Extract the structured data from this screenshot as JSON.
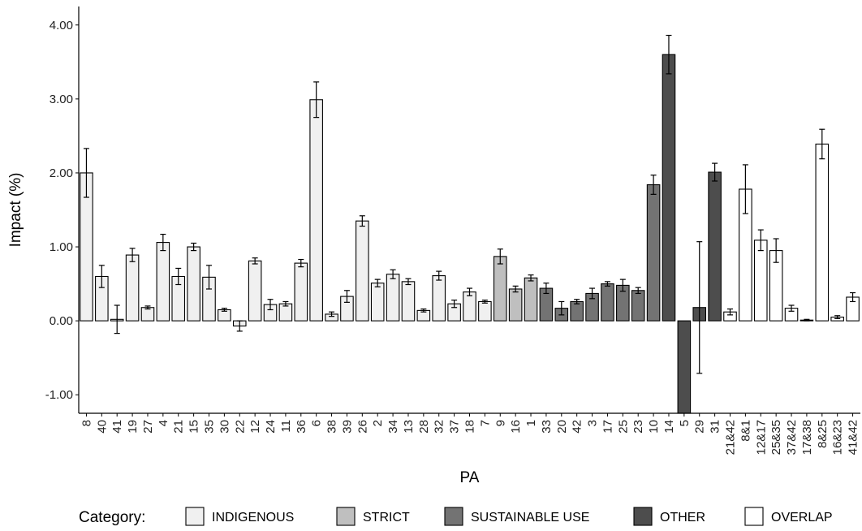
{
  "chart_data": {
    "type": "bar",
    "xlabel": "PA",
    "ylabel": "Impact (%)",
    "ylim": [
      -1.25,
      4.25
    ],
    "yticks": [
      "4.00",
      "3.00",
      "2.00",
      "1.00",
      "0.00",
      "-1.00"
    ],
    "ytick_values": [
      4,
      3,
      2,
      1,
      0,
      -1
    ],
    "grid": false,
    "legend": {
      "title": "Category:",
      "placement": "bottom",
      "items": [
        {
          "key": "INDIGENOUS",
          "label": "INDIGENOUS",
          "color": "#f0f0f0"
        },
        {
          "key": "STRICT",
          "label": "STRICT",
          "color": "#bfbfbf"
        },
        {
          "key": "SUSTAINABLE_USE",
          "label": "SUSTAINABLE USE",
          "color": "#737373"
        },
        {
          "key": "OTHER",
          "label": "OTHER",
          "color": "#4d4d4d"
        },
        {
          "key": "OVERLAP",
          "label": "OVERLAP",
          "color": "#ffffff"
        }
      ]
    },
    "bars": [
      {
        "pa": "8",
        "value": 2.0,
        "error": 0.33,
        "category": "INDIGENOUS"
      },
      {
        "pa": "40",
        "value": 0.6,
        "error": 0.15,
        "category": "INDIGENOUS"
      },
      {
        "pa": "41",
        "value": 0.02,
        "error": 0.19,
        "category": "INDIGENOUS"
      },
      {
        "pa": "19",
        "value": 0.89,
        "error": 0.09,
        "category": "INDIGENOUS"
      },
      {
        "pa": "27",
        "value": 0.18,
        "error": 0.02,
        "category": "INDIGENOUS"
      },
      {
        "pa": "4",
        "value": 1.06,
        "error": 0.11,
        "category": "INDIGENOUS"
      },
      {
        "pa": "21",
        "value": 0.6,
        "error": 0.11,
        "category": "INDIGENOUS"
      },
      {
        "pa": "15",
        "value": 1.0,
        "error": 0.05,
        "category": "INDIGENOUS"
      },
      {
        "pa": "35",
        "value": 0.59,
        "error": 0.16,
        "category": "INDIGENOUS"
      },
      {
        "pa": "30",
        "value": 0.15,
        "error": 0.02,
        "category": "INDIGENOUS"
      },
      {
        "pa": "22",
        "value": -0.07,
        "error": 0.07,
        "category": "INDIGENOUS"
      },
      {
        "pa": "12",
        "value": 0.81,
        "error": 0.04,
        "category": "INDIGENOUS"
      },
      {
        "pa": "24",
        "value": 0.22,
        "error": 0.07,
        "category": "INDIGENOUS"
      },
      {
        "pa": "11",
        "value": 0.23,
        "error": 0.03,
        "category": "INDIGENOUS"
      },
      {
        "pa": "36",
        "value": 0.78,
        "error": 0.05,
        "category": "INDIGENOUS"
      },
      {
        "pa": "6",
        "value": 2.99,
        "error": 0.24,
        "category": "INDIGENOUS"
      },
      {
        "pa": "38",
        "value": 0.09,
        "error": 0.03,
        "category": "INDIGENOUS"
      },
      {
        "pa": "39",
        "value": 0.33,
        "error": 0.08,
        "category": "INDIGENOUS"
      },
      {
        "pa": "26",
        "value": 1.35,
        "error": 0.07,
        "category": "INDIGENOUS"
      },
      {
        "pa": "2",
        "value": 0.51,
        "error": 0.05,
        "category": "INDIGENOUS"
      },
      {
        "pa": "34",
        "value": 0.63,
        "error": 0.06,
        "category": "INDIGENOUS"
      },
      {
        "pa": "13",
        "value": 0.53,
        "error": 0.04,
        "category": "INDIGENOUS"
      },
      {
        "pa": "28",
        "value": 0.14,
        "error": 0.02,
        "category": "INDIGENOUS"
      },
      {
        "pa": "32",
        "value": 0.61,
        "error": 0.06,
        "category": "INDIGENOUS"
      },
      {
        "pa": "37",
        "value": 0.23,
        "error": 0.05,
        "category": "INDIGENOUS"
      },
      {
        "pa": "18",
        "value": 0.39,
        "error": 0.05,
        "category": "INDIGENOUS"
      },
      {
        "pa": "7",
        "value": 0.26,
        "error": 0.02,
        "category": "INDIGENOUS"
      },
      {
        "pa": "9",
        "value": 0.87,
        "error": 0.1,
        "category": "STRICT"
      },
      {
        "pa": "16",
        "value": 0.43,
        "error": 0.04,
        "category": "STRICT"
      },
      {
        "pa": "1",
        "value": 0.58,
        "error": 0.04,
        "category": "STRICT"
      },
      {
        "pa": "33",
        "value": 0.44,
        "error": 0.07,
        "category": "SUSTAINABLE_USE"
      },
      {
        "pa": "20",
        "value": 0.17,
        "error": 0.09,
        "category": "SUSTAINABLE_USE"
      },
      {
        "pa": "42",
        "value": 0.26,
        "error": 0.03,
        "category": "SUSTAINABLE_USE"
      },
      {
        "pa": "3",
        "value": 0.37,
        "error": 0.07,
        "category": "SUSTAINABLE_USE"
      },
      {
        "pa": "17",
        "value": 0.5,
        "error": 0.03,
        "category": "SUSTAINABLE_USE"
      },
      {
        "pa": "25",
        "value": 0.48,
        "error": 0.08,
        "category": "SUSTAINABLE_USE"
      },
      {
        "pa": "23",
        "value": 0.41,
        "error": 0.04,
        "category": "SUSTAINABLE_USE"
      },
      {
        "pa": "10",
        "value": 1.84,
        "error": 0.13,
        "category": "SUSTAINABLE_USE"
      },
      {
        "pa": "14",
        "value": 3.6,
        "error": 0.26,
        "category": "OTHER"
      },
      {
        "pa": "5",
        "value": -1.3,
        "error": null,
        "category": "OTHER"
      },
      {
        "pa": "29",
        "value": 0.18,
        "error": 0.89,
        "category": "OTHER"
      },
      {
        "pa": "31",
        "value": 2.01,
        "error": 0.12,
        "category": "OTHER"
      },
      {
        "pa": "21&42",
        "value": 0.12,
        "error": 0.04,
        "category": "OVERLAP"
      },
      {
        "pa": "8&1",
        "value": 1.78,
        "error": 0.33,
        "category": "OVERLAP"
      },
      {
        "pa": "12&17",
        "value": 1.09,
        "error": 0.14,
        "category": "OVERLAP"
      },
      {
        "pa": "25&35",
        "value": 0.95,
        "error": 0.16,
        "category": "OVERLAP"
      },
      {
        "pa": "37&42",
        "value": 0.17,
        "error": 0.04,
        "category": "OVERLAP"
      },
      {
        "pa": "17&38",
        "value": 0.01,
        "error": 0.01,
        "category": "OVERLAP"
      },
      {
        "pa": "8&25",
        "value": 2.39,
        "error": 0.2,
        "category": "OVERLAP"
      },
      {
        "pa": "16&23",
        "value": 0.05,
        "error": 0.02,
        "category": "OVERLAP"
      },
      {
        "pa": "41&42",
        "value": 0.32,
        "error": 0.06,
        "category": "OVERLAP"
      }
    ]
  }
}
